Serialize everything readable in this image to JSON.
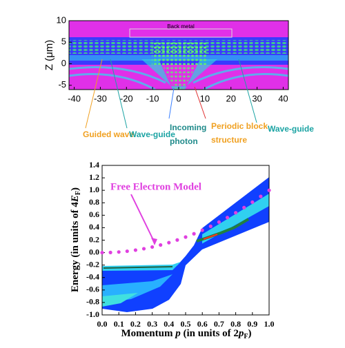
{
  "chart_data": [
    {
      "type": "heatmap",
      "ylabel": "Z (μm)",
      "xlim": [
        -42,
        42
      ],
      "xticks": [
        -40,
        -30,
        -20,
        -10,
        0,
        10,
        20,
        30,
        40
      ],
      "ylim": [
        -6,
        10
      ],
      "yticks": [
        -5,
        0,
        5,
        10
      ],
      "annotations": [
        {
          "lines": [
            "Back metal"
          ],
          "color": "#000000"
        },
        {
          "lines": [
            "Guided wave"
          ],
          "color": "#f0a020"
        },
        {
          "lines": [
            "Wave-guide"
          ],
          "color": "#1aa3a3"
        },
        {
          "lines": [
            "Incoming",
            "photon"
          ],
          "color": "#1f8a8a"
        },
        {
          "lines": [
            "Periodic block",
            "structure"
          ],
          "color": "#f0a020"
        },
        {
          "lines": [
            "Wave-guide"
          ],
          "color": "#1aa3a3"
        }
      ]
    },
    {
      "type": "contour",
      "xlabel": [
        "Momentum ",
        "p",
        " (in units of 2",
        "p",
        "F",
        ")"
      ],
      "ylabel": [
        "Energy (in units of 4",
        "E",
        "F",
        ")"
      ],
      "xlim": [
        0,
        1
      ],
      "xticks": [
        {
          "value": 0,
          "label": "0.0"
        },
        {
          "value": 0.1,
          "label": "0.1"
        },
        {
          "value": 0.2,
          "label": "0.2"
        },
        {
          "value": 0.3,
          "label": "0.3"
        },
        {
          "value": 0.4,
          "label": "0.4"
        },
        {
          "value": 0.5,
          "label": "0.5"
        },
        {
          "value": 0.6,
          "label": "0.6"
        },
        {
          "value": 0.7,
          "label": "0.7"
        },
        {
          "value": 0.8,
          "label": "0.8"
        },
        {
          "value": 0.9,
          "label": "0.9"
        },
        {
          "value": 1,
          "label": "1.0"
        }
      ],
      "ylim": [
        -1,
        1.4
      ],
      "yticks": [
        {
          "value": -1,
          "label": "-1.0"
        },
        {
          "value": -0.8,
          "label": "-0.8"
        },
        {
          "value": -0.6,
          "label": "-0.6"
        },
        {
          "value": -0.4,
          "label": "-0.4"
        },
        {
          "value": -0.2,
          "label": "-0.2"
        },
        {
          "value": 0,
          "label": "0.0"
        },
        {
          "value": 0.2,
          "label": "0.2"
        },
        {
          "value": 0.4,
          "label": "0.4"
        },
        {
          "value": 0.6,
          "label": "0.6"
        },
        {
          "value": 0.8,
          "label": "0.8"
        },
        {
          "value": 1,
          "label": "1.0"
        },
        {
          "value": 1.2,
          "label": "1.2"
        },
        {
          "value": 1.4,
          "label": "1.4"
        }
      ],
      "series": [
        {
          "name": "Free Electron Model",
          "color": "#e040e0",
          "x": [
            0,
            0.05,
            0.1,
            0.15,
            0.2,
            0.25,
            0.3,
            0.35,
            0.4,
            0.45,
            0.5,
            0.55,
            0.6,
            0.65,
            0.7,
            0.75,
            0.8,
            0.85,
            0.9,
            0.95,
            1
          ],
          "values": [
            0,
            0.0025,
            0.01,
            0.0225,
            0.04,
            0.0625,
            0.09,
            0.1225,
            0.16,
            0.2025,
            0.25,
            0.3025,
            0.36,
            0.4225,
            0.49,
            0.5625,
            0.64,
            0.7225,
            0.81,
            0.9025,
            1
          ]
        }
      ]
    }
  ]
}
